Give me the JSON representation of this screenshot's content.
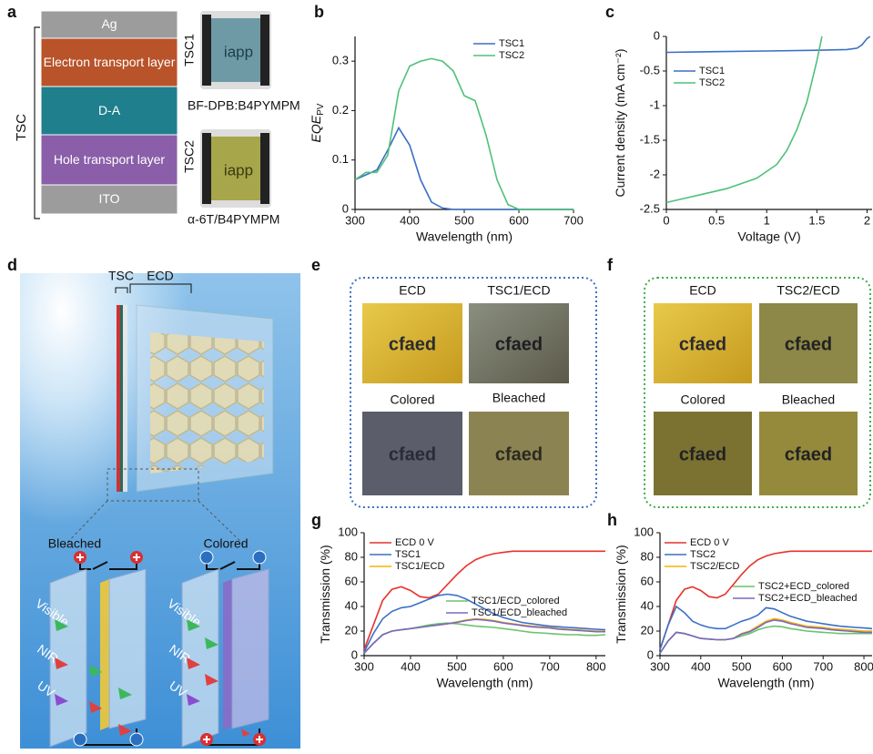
{
  "panel_labels": [
    "a",
    "b",
    "c",
    "d",
    "e",
    "f",
    "g",
    "h"
  ],
  "device_stack": {
    "group_label": "TSC",
    "layers": [
      "Ag",
      "Electron transport layer",
      "D-A",
      "Hole transport layer",
      "ITO"
    ],
    "samples": [
      {
        "name": "TSC1",
        "material": "BF-DPB:B4PYMPM"
      },
      {
        "name": "TSC2",
        "material": "α-6T/B4PYMPM"
      }
    ],
    "logo": "iapp"
  },
  "schematic": {
    "top_labels": [
      "TSC",
      "ECD"
    ],
    "states": [
      "Bleached",
      "Colored"
    ],
    "light": [
      "Visible",
      "NIR",
      "UV"
    ]
  },
  "photos_e": {
    "labels": [
      "ECD",
      "TSC1/ECD",
      "Colored",
      "Bleached"
    ],
    "logo": "cfaed"
  },
  "photos_f": {
    "labels": [
      "ECD",
      "TSC2/ECD",
      "Colored",
      "Bleached"
    ],
    "logo": "cfaed"
  },
  "chart_data": [
    {
      "type": "line",
      "xlabel": "Wavelength (nm)",
      "ylabel": "EQE",
      "ylabel_sub": "PV",
      "xlim": [
        300,
        700
      ],
      "xticks": [
        300,
        400,
        500,
        600,
        700
      ],
      "ylim": [
        0,
        0.35
      ],
      "yticks": [
        0,
        0.1,
        0.2,
        0.3
      ],
      "legend": "upper right",
      "x": [
        300,
        320,
        340,
        360,
        380,
        400,
        420,
        440,
        460,
        480,
        500,
        520,
        540,
        560,
        580,
        600,
        620,
        640,
        660,
        680,
        700
      ],
      "series": [
        {
          "name": "TSC1",
          "color": "#3b6fc6",
          "values": [
            0.06,
            0.07,
            0.08,
            0.12,
            0.165,
            0.13,
            0.06,
            0.015,
            0.003,
            0,
            0,
            0,
            0,
            0,
            0,
            0,
            0,
            0,
            0,
            0,
            0
          ]
        },
        {
          "name": "TSC2",
          "color": "#4fc07a",
          "values": [
            0.06,
            0.075,
            0.075,
            0.11,
            0.24,
            0.29,
            0.3,
            0.305,
            0.3,
            0.28,
            0.23,
            0.22,
            0.15,
            0.06,
            0.01,
            0,
            0,
            0,
            0,
            0,
            0
          ]
        }
      ]
    },
    {
      "type": "line",
      "xlabel": "Voltage (V)",
      "ylabel": "Current density (mA cm⁻²)",
      "xlim": [
        0,
        2.05
      ],
      "xticks": [
        0,
        0.5,
        1,
        1.5,
        2
      ],
      "ylim": [
        -2.5,
        0
      ],
      "yticks": [
        0,
        -0.5,
        -1,
        -1.5,
        -2,
        -2.5
      ],
      "legend": "upper left",
      "series": [
        {
          "name": "TSC1",
          "color": "#3b6fc6",
          "x": [
            0,
            0.5,
            1,
            1.5,
            1.8,
            1.9,
            1.95,
            2.0,
            2.03
          ],
          "values": [
            -0.23,
            -0.22,
            -0.21,
            -0.2,
            -0.19,
            -0.17,
            -0.12,
            -0.03,
            0
          ]
        },
        {
          "name": "TSC2",
          "color": "#4fc07a",
          "x": [
            0,
            0.3,
            0.6,
            0.9,
            1.1,
            1.2,
            1.3,
            1.4,
            1.5,
            1.55
          ],
          "values": [
            -2.4,
            -2.3,
            -2.2,
            -2.05,
            -1.85,
            -1.65,
            -1.35,
            -0.95,
            -0.35,
            0
          ]
        }
      ]
    },
    {
      "type": "line",
      "xlabel": "Wavelength (nm)",
      "ylabel": "Transmission (%)",
      "xlim": [
        300,
        820
      ],
      "xticks": [
        300,
        400,
        500,
        600,
        700,
        800
      ],
      "ylim": [
        0,
        100
      ],
      "yticks": [
        0,
        20,
        40,
        60,
        80,
        100
      ],
      "legend": "upper left",
      "x": [
        300,
        320,
        340,
        360,
        380,
        400,
        420,
        440,
        460,
        480,
        500,
        520,
        540,
        560,
        580,
        600,
        620,
        640,
        660,
        680,
        700,
        720,
        740,
        760,
        780,
        800,
        820
      ],
      "series": [
        {
          "name": "ECD 0 V",
          "color": "#e8322b",
          "values": [
            5,
            25,
            45,
            54,
            56,
            53,
            48,
            47,
            50,
            58,
            66,
            73,
            78,
            81,
            83,
            84,
            85,
            85,
            85,
            85,
            85,
            85,
            85,
            85,
            85,
            85,
            85
          ]
        },
        {
          "name": "TSC1",
          "color": "#3b6fc6",
          "values": [
            3,
            18,
            30,
            36,
            39,
            40,
            43,
            46,
            49,
            50,
            49,
            46,
            42,
            38,
            34,
            31,
            29,
            27,
            26,
            25,
            24,
            23.5,
            23,
            22.5,
            22,
            21.5,
            21
          ]
        },
        {
          "name": "TSC1/ECD",
          "color": "#f4b400",
          "values": [
            2,
            10,
            17,
            20,
            21,
            22,
            23,
            24,
            25,
            26,
            27.5,
            29,
            30,
            29.5,
            28.5,
            27,
            26,
            25,
            24,
            23.5,
            23,
            22,
            21.5,
            21,
            20.5,
            20,
            20
          ]
        },
        {
          "name": "TSC1/ECD_colored",
          "color": "#6cc36c",
          "values": [
            2,
            10,
            17,
            20,
            21,
            22,
            23.5,
            25,
            26,
            26.5,
            26,
            25,
            24,
            23.5,
            23,
            22,
            21,
            20,
            19,
            18.5,
            18,
            17.5,
            17,
            17,
            16.5,
            16.5,
            17
          ]
        },
        {
          "name": "TSC1/ECD_bleached",
          "color": "#7a68c4",
          "values": [
            2,
            10,
            17,
            20,
            21,
            22,
            23,
            24,
            25,
            26,
            27,
            28.5,
            29.5,
            29,
            28,
            26.5,
            25.5,
            24.5,
            23.5,
            23,
            22.5,
            21.5,
            21,
            20.5,
            20,
            19.5,
            19.5
          ]
        }
      ]
    },
    {
      "type": "line",
      "xlabel": "Wavelength (nm)",
      "ylabel": "Transmission (%)",
      "xlim": [
        300,
        820
      ],
      "xticks": [
        300,
        400,
        500,
        600,
        700,
        800
      ],
      "ylim": [
        0,
        100
      ],
      "yticks": [
        0,
        20,
        40,
        60,
        80,
        100
      ],
      "legend": "upper left",
      "x": [
        300,
        320,
        340,
        360,
        380,
        400,
        420,
        440,
        460,
        480,
        500,
        520,
        540,
        560,
        580,
        600,
        620,
        640,
        660,
        680,
        700,
        720,
        740,
        760,
        780,
        800,
        820
      ],
      "series": [
        {
          "name": "ECD 0 V",
          "color": "#e8322b",
          "values": [
            5,
            25,
            45,
            54,
            56,
            53,
            48,
            47,
            50,
            58,
            66,
            73,
            78,
            81,
            83,
            84,
            85,
            85,
            85,
            85,
            85,
            85,
            85,
            85,
            85,
            85,
            85
          ]
        },
        {
          "name": "TSC2",
          "color": "#3b6fc6",
          "values": [
            5,
            25,
            40,
            35,
            28,
            25,
            23,
            22,
            22,
            25,
            28,
            30,
            33,
            39,
            38,
            35,
            32,
            30,
            28,
            27,
            26,
            25,
            24,
            23.5,
            23,
            22.5,
            22
          ]
        },
        {
          "name": "TSC2/ECD",
          "color": "#f4b400",
          "values": [
            2,
            12,
            19,
            18,
            16,
            14,
            13.5,
            13,
            13,
            14,
            18,
            20,
            24,
            28,
            30,
            29,
            27,
            25.5,
            24,
            23.5,
            23,
            22,
            21.5,
            21,
            20.5,
            20,
            20
          ]
        },
        {
          "name": "TSC2+ECD_colored",
          "color": "#6cc36c",
          "values": [
            2,
            12,
            19,
            18,
            16,
            14,
            13.5,
            13,
            13,
            14,
            16,
            18,
            21,
            23,
            24,
            23.5,
            22,
            21,
            20,
            19.5,
            19,
            18.5,
            18,
            18,
            18,
            18,
            18
          ]
        },
        {
          "name": "TSC2+ECD_bleached",
          "color": "#7a68c4",
          "values": [
            2,
            12,
            19,
            18,
            16,
            14,
            13.5,
            13,
            13,
            14,
            17.5,
            19.5,
            23,
            27,
            29,
            28,
            26,
            24.5,
            23,
            22.5,
            22,
            21,
            20.5,
            20,
            19.5,
            19,
            19
          ]
        }
      ]
    }
  ]
}
